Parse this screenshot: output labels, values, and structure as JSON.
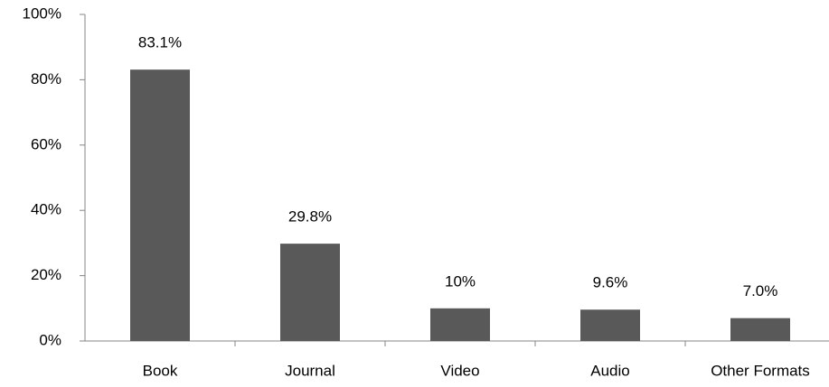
{
  "chart_data": {
    "type": "bar",
    "categories": [
      "Book",
      "Journal",
      "Video",
      "Audio",
      "Other Formats"
    ],
    "values": [
      83.1,
      29.8,
      10,
      9.6,
      7.0
    ],
    "value_labels": [
      "83.1%",
      "29.8%",
      "10%",
      "9.6%",
      "7.0%"
    ],
    "color": "#595959",
    "ylim": [
      0,
      100
    ],
    "yticks": [
      {
        "value": 0,
        "label": "0%"
      },
      {
        "value": 20,
        "label": "20%"
      },
      {
        "value": 40,
        "label": "40%"
      },
      {
        "value": 60,
        "label": "60%"
      },
      {
        "value": 80,
        "label": "80%"
      },
      {
        "value": 100,
        "label": "100%"
      }
    ],
    "grid": false
  }
}
